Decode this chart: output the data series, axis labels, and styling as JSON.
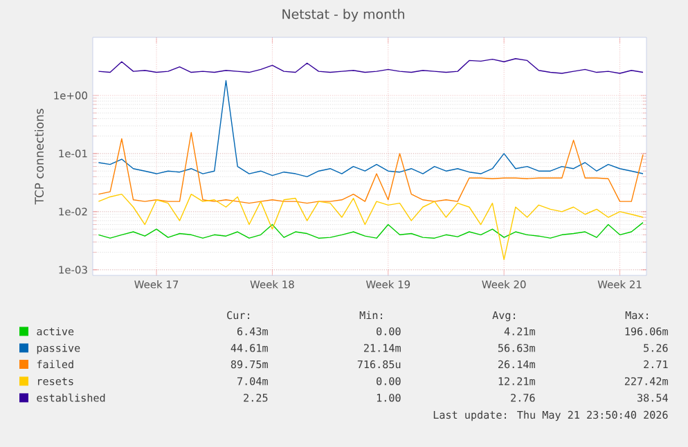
{
  "chart_data": {
    "type": "line",
    "title": "Netstat - by month",
    "ylabel": "TCP connections",
    "log": true,
    "grid": true,
    "legend": "bottom",
    "categories": [
      null,
      null,
      null,
      null,
      null,
      "Week 17",
      null,
      null,
      null,
      null,
      null,
      null,
      null,
      null,
      null,
      "Week 18",
      null,
      null,
      null,
      null,
      null,
      null,
      null,
      null,
      null,
      "Week 19",
      null,
      null,
      null,
      null,
      null,
      null,
      null,
      null,
      null,
      "Week 20",
      null,
      null,
      null,
      null,
      null,
      null,
      null,
      null,
      null,
      "Week 21",
      null,
      null
    ],
    "ylim": [
      0.0008,
      10
    ],
    "yticks": [
      {
        "value": 0.001,
        "label": "1e-03"
      },
      {
        "value": 0.01,
        "label": "1e-02"
      },
      {
        "value": 0.1,
        "label": "1e-01"
      },
      {
        "value": 1,
        "label": "1e+00"
      }
    ],
    "series": [
      {
        "name": "active",
        "color": "#00cc00",
        "values": [
          0.004,
          0.0035,
          0.004,
          0.0045,
          0.0038,
          0.005,
          0.0036,
          0.0042,
          0.004,
          0.0035,
          0.004,
          0.0038,
          0.0045,
          0.0035,
          0.004,
          0.006,
          0.0036,
          0.0045,
          0.0042,
          0.0035,
          0.0036,
          0.004,
          0.0045,
          0.0038,
          0.0035,
          0.006,
          0.004,
          0.0042,
          0.0036,
          0.0035,
          0.004,
          0.0037,
          0.0045,
          0.004,
          0.005,
          0.0036,
          0.0045,
          0.004,
          0.0038,
          0.0035,
          0.004,
          0.0042,
          0.0045,
          0.0036,
          0.006,
          0.004,
          0.0045,
          0.0065
        ]
      },
      {
        "name": "passive",
        "color": "#0066b3",
        "values": [
          0.07,
          0.065,
          0.08,
          0.055,
          0.05,
          0.045,
          0.05,
          0.048,
          0.055,
          0.045,
          0.05,
          1.8,
          0.06,
          0.045,
          0.05,
          0.042,
          0.048,
          0.045,
          0.04,
          0.05,
          0.055,
          0.045,
          0.06,
          0.05,
          0.065,
          0.05,
          0.048,
          0.055,
          0.045,
          0.06,
          0.05,
          0.055,
          0.048,
          0.045,
          0.055,
          0.1,
          0.055,
          0.06,
          0.05,
          0.05,
          0.06,
          0.055,
          0.07,
          0.05,
          0.065,
          0.055,
          0.05,
          0.045
        ]
      },
      {
        "name": "failed",
        "color": "#ff8000",
        "values": [
          0.02,
          0.022,
          0.18,
          0.016,
          0.015,
          0.016,
          0.015,
          0.015,
          0.23,
          0.016,
          0.015,
          0.016,
          0.015,
          0.014,
          0.015,
          0.016,
          0.015,
          0.015,
          0.014,
          0.015,
          0.015,
          0.016,
          0.02,
          0.015,
          0.045,
          0.016,
          0.1,
          0.02,
          0.016,
          0.015,
          0.016,
          0.015,
          0.038,
          0.038,
          0.037,
          0.038,
          0.038,
          0.037,
          0.038,
          0.038,
          0.038,
          0.17,
          0.038,
          0.038,
          0.037,
          0.015,
          0.015,
          0.096
        ]
      },
      {
        "name": "resets",
        "color": "#ffcc00",
        "values": [
          0.015,
          0.018,
          0.02,
          0.012,
          0.006,
          0.016,
          0.014,
          0.007,
          0.02,
          0.015,
          0.016,
          0.012,
          0.018,
          0.006,
          0.015,
          0.005,
          0.016,
          0.017,
          0.007,
          0.015,
          0.014,
          0.008,
          0.017,
          0.006,
          0.015,
          0.013,
          0.014,
          0.007,
          0.012,
          0.015,
          0.008,
          0.014,
          0.012,
          0.006,
          0.014,
          0.0015,
          0.012,
          0.008,
          0.013,
          0.011,
          0.01,
          0.012,
          0.009,
          0.011,
          0.008,
          0.01,
          0.009,
          0.008
        ]
      },
      {
        "name": "established",
        "color": "#330099",
        "values": [
          2.6,
          2.5,
          3.8,
          2.6,
          2.7,
          2.5,
          2.6,
          3.1,
          2.5,
          2.6,
          2.5,
          2.7,
          2.6,
          2.5,
          2.8,
          3.3,
          2.6,
          2.5,
          3.6,
          2.6,
          2.5,
          2.6,
          2.7,
          2.5,
          2.6,
          2.8,
          2.6,
          2.5,
          2.7,
          2.6,
          2.5,
          2.6,
          4.0,
          3.9,
          4.2,
          3.8,
          4.3,
          4.0,
          2.7,
          2.5,
          2.4,
          2.6,
          2.8,
          2.5,
          2.6,
          2.4,
          2.7,
          2.5
        ]
      }
    ],
    "annotations": [
      "Cur:",
      "Min:",
      "Avg:",
      "Max:",
      "6.43m",
      "0.00",
      "4.21m",
      "196.06m",
      "44.61m",
      "21.14m",
      "56.63m",
      "5.26",
      "89.75m",
      "716.85u",
      "26.14m",
      "2.71",
      "7.04m",
      "0.00",
      "12.21m",
      "227.42m",
      "2.25",
      "1.00",
      "2.76",
      "38.54",
      "Last update: Thu May 21 23:50:40 2026"
    ]
  }
}
